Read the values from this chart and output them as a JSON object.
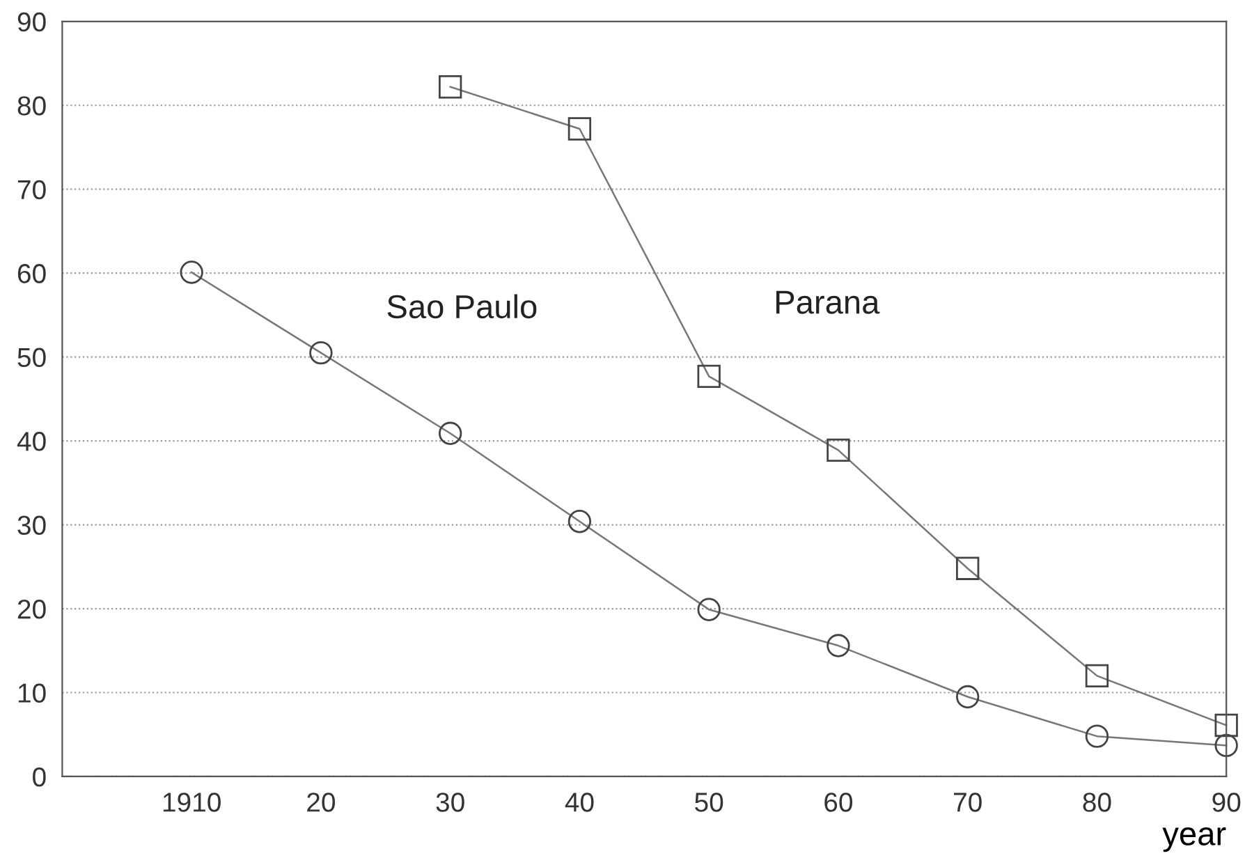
{
  "chart_data": {
    "type": "line",
    "xlabel": "year",
    "x": [
      1910,
      1920,
      1930,
      1940,
      1950,
      1960,
      1970,
      1980,
      1990
    ],
    "series": [
      {
        "name": "Sao Paulo",
        "color": "#777777",
        "marker": "circle",
        "values": [
          60.1,
          50.5,
          40.9,
          30.4,
          19.9,
          15.6,
          9.5,
          4.8,
          3.7
        ]
      },
      {
        "name": "Parana",
        "color": "#777777",
        "marker": "square",
        "values": [
          null,
          null,
          82.2,
          77.2,
          47.7,
          38.9,
          24.8,
          12.0,
          6.1
        ]
      }
    ],
    "xlim": [
      1900,
      1990
    ],
    "xticks": [
      1910,
      {
        "value": 1920,
        "label": "20"
      },
      {
        "value": 1930,
        "label": "30"
      },
      {
        "value": 1940,
        "label": "40"
      },
      {
        "value": 1950,
        "label": "50"
      },
      {
        "value": 1960,
        "label": "60"
      },
      {
        "value": 1970,
        "label": "70"
      },
      {
        "value": 1980,
        "label": "80"
      },
      {
        "value": 1990,
        "label": "90"
      }
    ],
    "ylim": [
      0,
      90
    ],
    "yticks": [
      0,
      10,
      20,
      30,
      40,
      50,
      60,
      70,
      80,
      90
    ],
    "grid": "y",
    "line_style": "solid"
  }
}
